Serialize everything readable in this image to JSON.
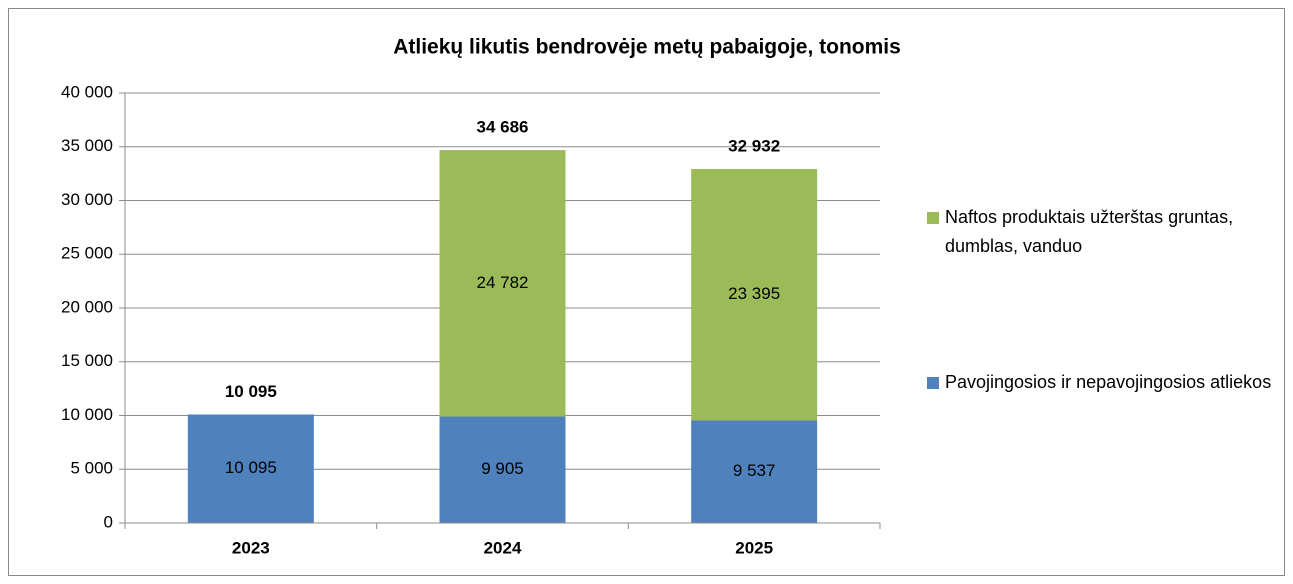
{
  "chart_data": {
    "type": "stacked_bar",
    "title": "Atliekų likutis bendrovėje metų pabaigoje, tonomis",
    "categories": [
      "2023",
      "2024",
      "2025"
    ],
    "series": [
      {
        "name": "Pavojingosios ir nepavojingosios atliekos",
        "color": "#4f81bd",
        "values": [
          10095,
          9905,
          9537
        ],
        "value_labels": [
          "10 095",
          "9 905",
          "9 537"
        ]
      },
      {
        "name": "Naftos produktais užterštas gruntas, dumblas, vanduo",
        "color": "#9bbb59",
        "values": [
          null,
          24782,
          23395
        ],
        "value_labels": [
          null,
          "24 782",
          "23 395"
        ]
      }
    ],
    "total_labels": [
      "10 095",
      "34 686",
      "32 932"
    ],
    "ylim": [
      0,
      40000
    ],
    "yticks": [
      0,
      {
        "value": 5000,
        "label": "5 000"
      },
      {
        "value": 10000,
        "label": "10 000"
      },
      {
        "value": 15000,
        "label": "15 000"
      },
      {
        "value": 20000,
        "label": "20 000"
      },
      {
        "value": 25000,
        "label": "25 000"
      },
      {
        "value": 30000,
        "label": "30 000"
      },
      {
        "value": 35000,
        "label": "35 000"
      },
      {
        "value": 40000,
        "label": "40 000"
      }
    ],
    "grid": true,
    "legend": "right"
  }
}
